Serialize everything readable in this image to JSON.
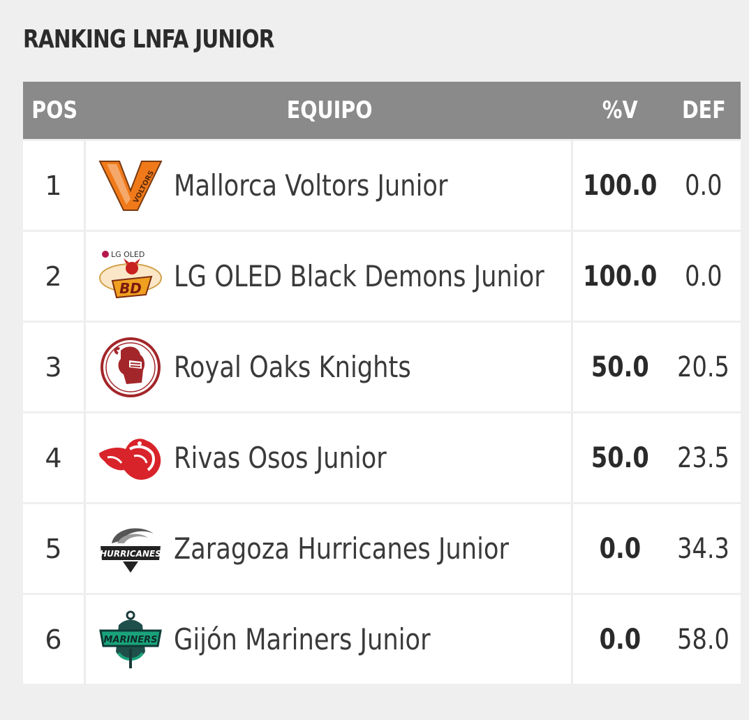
{
  "page": {
    "title": "RANKING LNFA JUNIOR"
  },
  "table": {
    "headers": {
      "pos": "POS",
      "team": "EQUIPO",
      "pct": "%V",
      "def": "DEF"
    },
    "rows": [
      {
        "pos": "1",
        "team": "Mallorca Voltors Junior",
        "pct": "100.0",
        "def": "0.0",
        "logo_icon": "voltors-logo",
        "logo_text": "VOLTORS"
      },
      {
        "pos": "2",
        "team": "LG OLED Black Demons Junior",
        "pct": "100.0",
        "def": "0.0",
        "logo_icon": "black-demons-logo",
        "logo_text": "LG OLED"
      },
      {
        "pos": "3",
        "team": "Royal Oaks Knights",
        "pct": "50.0",
        "def": "20.5",
        "logo_icon": "royal-oaks-knights-logo"
      },
      {
        "pos": "4",
        "team": "Rivas Osos Junior",
        "pct": "50.0",
        "def": "23.5",
        "logo_icon": "rivas-osos-logo"
      },
      {
        "pos": "5",
        "team": "Zaragoza Hurricanes Junior",
        "pct": "0.0",
        "def": "34.3",
        "logo_icon": "hurricanes-logo",
        "logo_text": "HURRICANES"
      },
      {
        "pos": "6",
        "team": "Gijón Mariners Junior",
        "pct": "0.0",
        "def": "58.0",
        "logo_icon": "mariners-logo",
        "logo_text": "MARINERS"
      }
    ]
  },
  "colors": {
    "header_bg": "#8a8a8a",
    "page_bg": "#efefef",
    "row_bg": "#ffffff",
    "voltors_orange": "#f07a1a",
    "knights_red": "#a3262a",
    "osos_red": "#d8232a",
    "mariners_green": "#1aa37a"
  }
}
